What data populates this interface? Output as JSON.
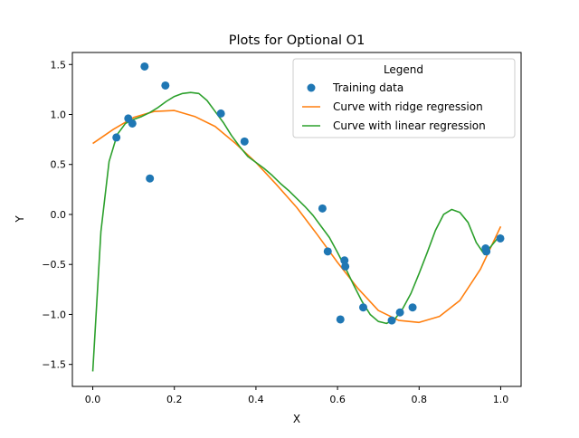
{
  "chart_data": {
    "type": "scatter",
    "title": "Plots for Optional O1",
    "xlabel": "X",
    "ylabel": "Y",
    "xlim": [
      -0.05,
      1.05
    ],
    "ylim": [
      -1.72,
      1.62
    ],
    "xticks": [
      0.0,
      0.2,
      0.4,
      0.6,
      0.8,
      1.0
    ],
    "yticks": [
      -1.5,
      -1.0,
      -0.5,
      0.0,
      0.5,
      1.0,
      1.5
    ],
    "xtick_labels": [
      "0.0",
      "0.2",
      "0.4",
      "0.6",
      "0.8",
      "1.0"
    ],
    "ytick_labels": [
      "−1.5",
      "−1.0",
      "−0.5",
      "0.0",
      "0.5",
      "1.0",
      "1.5"
    ],
    "grid": false,
    "legend": {
      "title": "Legend",
      "placement": "top-right"
    },
    "series": [
      {
        "name": "Training data",
        "kind": "points",
        "color": "#1f77b4",
        "x": [
          0.058,
          0.087,
          0.097,
          0.127,
          0.14,
          0.178,
          0.314,
          0.372,
          0.563,
          0.576,
          0.607,
          0.617,
          0.619,
          0.663,
          0.733,
          0.753,
          0.784,
          0.963,
          0.965,
          0.999
        ],
        "y": [
          0.77,
          0.96,
          0.91,
          1.48,
          0.36,
          1.29,
          1.01,
          0.73,
          0.06,
          -0.37,
          -1.05,
          -0.46,
          -0.52,
          -0.93,
          -1.06,
          -0.98,
          -0.93,
          -0.34,
          -0.37,
          -0.24
        ]
      },
      {
        "name": "Curve with ridge regression",
        "kind": "line",
        "color": "#ff7f0e",
        "x": [
          0.0,
          0.05,
          0.1,
          0.15,
          0.2,
          0.25,
          0.3,
          0.35,
          0.4,
          0.45,
          0.5,
          0.55,
          0.6,
          0.65,
          0.7,
          0.75,
          0.8,
          0.85,
          0.9,
          0.95,
          1.0
        ],
        "y": [
          0.71,
          0.85,
          0.97,
          1.03,
          1.04,
          0.98,
          0.88,
          0.71,
          0.52,
          0.3,
          0.07,
          -0.2,
          -0.48,
          -0.74,
          -0.96,
          -1.06,
          -1.08,
          -1.02,
          -0.86,
          -0.55,
          -0.12
        ]
      },
      {
        "name": "Curve with linear regression",
        "kind": "line",
        "color": "#2ca02c",
        "x": [
          0.0,
          0.02,
          0.04,
          0.06,
          0.08,
          0.1,
          0.12,
          0.14,
          0.16,
          0.18,
          0.2,
          0.22,
          0.24,
          0.26,
          0.28,
          0.3,
          0.32,
          0.34,
          0.36,
          0.38,
          0.4,
          0.42,
          0.44,
          0.46,
          0.48,
          0.5,
          0.52,
          0.54,
          0.56,
          0.58,
          0.6,
          0.62,
          0.64,
          0.66,
          0.68,
          0.7,
          0.72,
          0.74,
          0.76,
          0.78,
          0.8,
          0.82,
          0.84,
          0.86,
          0.88,
          0.9,
          0.92,
          0.94,
          0.96,
          0.98,
          1.0
        ],
        "y": [
          -1.57,
          -0.17,
          0.53,
          0.8,
          0.91,
          0.95,
          0.98,
          1.02,
          1.07,
          1.13,
          1.18,
          1.21,
          1.22,
          1.21,
          1.14,
          1.03,
          0.92,
          0.79,
          0.68,
          0.58,
          0.52,
          0.46,
          0.39,
          0.31,
          0.24,
          0.16,
          0.08,
          -0.01,
          -0.12,
          -0.23,
          -0.38,
          -0.54,
          -0.71,
          -0.87,
          -1.0,
          -1.07,
          -1.09,
          -1.05,
          -0.94,
          -0.79,
          -0.59,
          -0.38,
          -0.16,
          0.0,
          0.05,
          0.02,
          -0.08,
          -0.28,
          -0.4,
          -0.3,
          -0.2
        ]
      }
    ]
  }
}
